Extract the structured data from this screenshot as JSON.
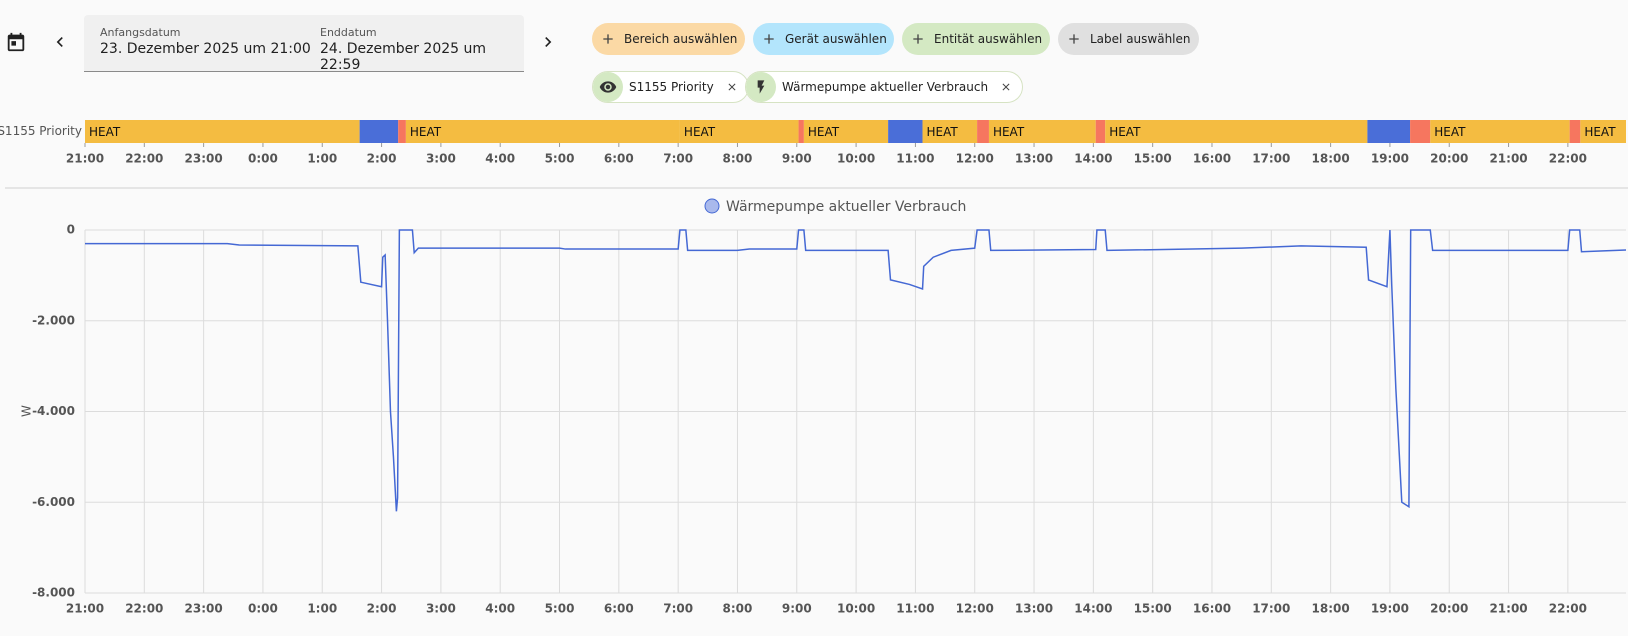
{
  "toolbar": {
    "start_label": "Anfangsdatum",
    "start_value": "23. Dezember 2025 um 21:00",
    "end_label": "Enddatum",
    "end_value": "24. Dezember 2025 um 22:59"
  },
  "filters": {
    "add_buttons": [
      "Bereich auswählen",
      "Gerät auswählen",
      "Entität auswählen",
      "Label auswählen"
    ],
    "selected": [
      "S1155 Priority",
      "Wärmepumpe aktueller Verbrauch"
    ]
  },
  "chart_data": [
    {
      "type": "timeline",
      "row_label": "S1155 Priority",
      "xlim": [
        0,
        25.98
      ],
      "xticks": [
        {
          "value": 0,
          "label": "21:00"
        },
        {
          "value": 1,
          "label": "22:00"
        },
        {
          "value": 2,
          "label": "23:00"
        },
        {
          "value": 3,
          "label": "0:00"
        },
        {
          "value": 4,
          "label": "1:00"
        },
        {
          "value": 5,
          "label": "2:00"
        },
        {
          "value": 6,
          "label": "3:00"
        },
        {
          "value": 7,
          "label": "4:00"
        },
        {
          "value": 8,
          "label": "5:00"
        },
        {
          "value": 9,
          "label": "6:00"
        },
        {
          "value": 10,
          "label": "7:00"
        },
        {
          "value": 11,
          "label": "8:00"
        },
        {
          "value": 12,
          "label": "9:00"
        },
        {
          "value": 13,
          "label": "10:00"
        },
        {
          "value": 14,
          "label": "11:00"
        },
        {
          "value": 15,
          "label": "12:00"
        },
        {
          "value": 16,
          "label": "13:00"
        },
        {
          "value": 17,
          "label": "14:00"
        },
        {
          "value": 18,
          "label": "15:00"
        },
        {
          "value": 19,
          "label": "16:00"
        },
        {
          "value": 20,
          "label": "17:00"
        },
        {
          "value": 21,
          "label": "18:00"
        },
        {
          "value": 22,
          "label": "19:00"
        },
        {
          "value": 23,
          "label": "20:00"
        },
        {
          "value": 24,
          "label": "21:00"
        },
        {
          "value": 25,
          "label": "22:00"
        }
      ],
      "segments": [
        {
          "label": "HEAT",
          "start": 0,
          "end": 4.63,
          "color": "#f4bc41"
        },
        {
          "label": null,
          "start": 4.63,
          "end": 5.28,
          "color": "#4a6ed8"
        },
        {
          "label": null,
          "start": 5.28,
          "end": 5.41,
          "color": "#f6765f"
        },
        {
          "label": "HEAT",
          "start": 5.41,
          "end": 10.03,
          "color": "#f4bc41"
        },
        {
          "label": "HEAT",
          "start": 10.03,
          "end": 12.03,
          "color": "#f4bc41"
        },
        {
          "label": null,
          "start": 12.03,
          "end": 12.12,
          "color": "#f6765f"
        },
        {
          "label": "HEAT",
          "start": 12.12,
          "end": 13.54,
          "color": "#f4bc41"
        },
        {
          "label": null,
          "start": 13.54,
          "end": 14.12,
          "color": "#4a6ed8"
        },
        {
          "label": "HEAT",
          "start": 14.12,
          "end": 15.04,
          "color": "#f4bc41"
        },
        {
          "label": null,
          "start": 15.04,
          "end": 15.24,
          "color": "#f6765f"
        },
        {
          "label": "HEAT",
          "start": 15.24,
          "end": 17.04,
          "color": "#f4bc41"
        },
        {
          "label": null,
          "start": 17.04,
          "end": 17.2,
          "color": "#f6765f"
        },
        {
          "label": "HEAT",
          "start": 17.2,
          "end": 21.62,
          "color": "#f4bc41"
        },
        {
          "label": null,
          "start": 21.62,
          "end": 22.34,
          "color": "#4a6ed8"
        },
        {
          "label": null,
          "start": 22.34,
          "end": 22.68,
          "color": "#f6765f"
        },
        {
          "label": "HEAT",
          "start": 22.68,
          "end": 25.03,
          "color": "#f4bc41"
        },
        {
          "label": null,
          "start": 25.03,
          "end": 25.21,
          "color": "#f6765f"
        },
        {
          "label": "HEAT",
          "start": 25.21,
          "end": 25.98,
          "color": "#f4bc41"
        }
      ]
    },
    {
      "type": "line",
      "ylabel": "W",
      "xlim": [
        0,
        25.98
      ],
      "ylim": [
        -8000,
        0
      ],
      "grid": true,
      "xticks": [
        {
          "value": 0,
          "label": "21:00"
        },
        {
          "value": 1,
          "label": "22:00"
        },
        {
          "value": 2,
          "label": "23:00"
        },
        {
          "value": 3,
          "label": "0:00"
        },
        {
          "value": 4,
          "label": "1:00"
        },
        {
          "value": 5,
          "label": "2:00"
        },
        {
          "value": 6,
          "label": "3:00"
        },
        {
          "value": 7,
          "label": "4:00"
        },
        {
          "value": 8,
          "label": "5:00"
        },
        {
          "value": 9,
          "label": "6:00"
        },
        {
          "value": 10,
          "label": "7:00"
        },
        {
          "value": 11,
          "label": "8:00"
        },
        {
          "value": 12,
          "label": "9:00"
        },
        {
          "value": 13,
          "label": "10:00"
        },
        {
          "value": 14,
          "label": "11:00"
        },
        {
          "value": 15,
          "label": "12:00"
        },
        {
          "value": 16,
          "label": "13:00"
        },
        {
          "value": 17,
          "label": "14:00"
        },
        {
          "value": 18,
          "label": "15:00"
        },
        {
          "value": 19,
          "label": "16:00"
        },
        {
          "value": 20,
          "label": "17:00"
        },
        {
          "value": 21,
          "label": "18:00"
        },
        {
          "value": 22,
          "label": "19:00"
        },
        {
          "value": 23,
          "label": "20:00"
        },
        {
          "value": 24,
          "label": "21:00"
        },
        {
          "value": 25,
          "label": "22:00"
        }
      ],
      "yticks": [
        {
          "value": -8000,
          "label": "-8.000"
        },
        {
          "value": -6000,
          "label": "-6.000"
        },
        {
          "value": -4000,
          "label": "-4.000"
        },
        {
          "value": -2000,
          "label": "-2.000"
        },
        0
      ],
      "series": [
        {
          "name": "Wärmepumpe aktueller Verbrauch",
          "color": "#4468d4",
          "x": [
            0,
            2.4,
            2.6,
            4.6,
            4.65,
            5.0,
            5.02,
            5.06,
            5.1,
            5.15,
            5.2,
            5.25,
            5.27,
            5.3,
            5.52,
            5.55,
            5.62,
            8.0,
            8.1,
            10.0,
            10.03,
            10.13,
            10.16,
            11.0,
            11.2,
            12.0,
            12.03,
            12.12,
            12.15,
            13.54,
            13.58,
            13.9,
            14.12,
            14.14,
            14.3,
            14.6,
            15.0,
            15.04,
            15.24,
            15.27,
            17.04,
            17.06,
            17.2,
            17.23,
            19.5,
            20.5,
            21.6,
            21.64,
            21.95,
            22.0,
            22.03,
            22.1,
            22.2,
            22.32,
            22.35,
            22.68,
            22.72,
            25.0,
            25.03,
            25.2,
            25.23,
            25.6,
            25.98
          ],
          "values": [
            -300,
            -300,
            -330,
            -350,
            -1150,
            -1250,
            -600,
            -550,
            -2000,
            -4000,
            -5000,
            -6200,
            -5900,
            0,
            0,
            -500,
            -400,
            -400,
            -420,
            -420,
            0,
            0,
            -450,
            -450,
            -420,
            -420,
            0,
            0,
            -450,
            -450,
            -1100,
            -1200,
            -1300,
            -800,
            -600,
            -450,
            -400,
            0,
            0,
            -450,
            -430,
            0,
            0,
            -450,
            -400,
            -350,
            -380,
            -1100,
            -1250,
            0,
            -1200,
            -3500,
            -6000,
            -6100,
            0,
            0,
            -450,
            -450,
            0,
            0,
            -480,
            -460,
            -440
          ]
        }
      ]
    }
  ]
}
